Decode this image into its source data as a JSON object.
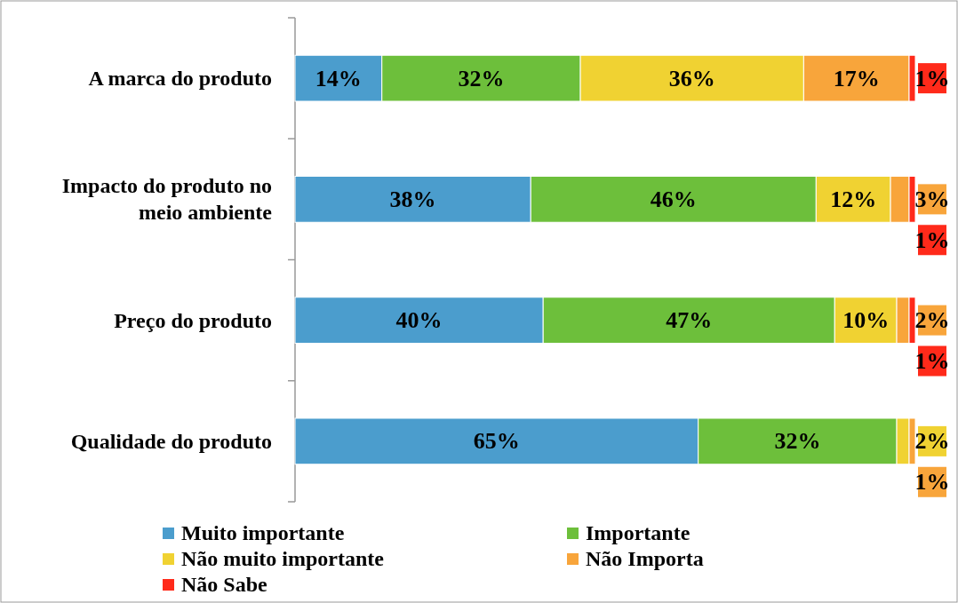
{
  "chart_data": {
    "type": "bar",
    "orientation": "horizontal",
    "stacked": true,
    "categories": [
      "A marca do produto",
      "Impacto do produto no meio ambiente",
      "Preço do produto",
      "Qualidade do produto"
    ],
    "series": [
      {
        "name": "Muito importante",
        "color": "#4b9dcd",
        "values": [
          14,
          38,
          40,
          65
        ],
        "value_labels": [
          "14%",
          "38%",
          "40%",
          "65%"
        ]
      },
      {
        "name": "Importante",
        "color": "#6dbf3b",
        "values": [
          32,
          46,
          47,
          32
        ],
        "value_labels": [
          "32%",
          "46%",
          "47%",
          "32%"
        ]
      },
      {
        "name": "Não muito importante",
        "color": "#f0d232",
        "values": [
          36,
          12,
          10,
          2
        ],
        "value_labels": [
          "36%",
          "12%",
          "10%",
          "2%"
        ]
      },
      {
        "name": "Não Importa",
        "color": "#f8a53b",
        "values": [
          17,
          3,
          2,
          1
        ],
        "value_labels": [
          "17%",
          "3%",
          "2%",
          "1%"
        ]
      },
      {
        "name": "Não Sabe",
        "color": "#ff2a1a",
        "values": [
          1,
          1,
          1,
          null
        ],
        "value_labels": [
          "1%",
          "1%",
          "1%",
          null
        ]
      }
    ],
    "tick_labels": "y",
    "legend": "bottom"
  }
}
